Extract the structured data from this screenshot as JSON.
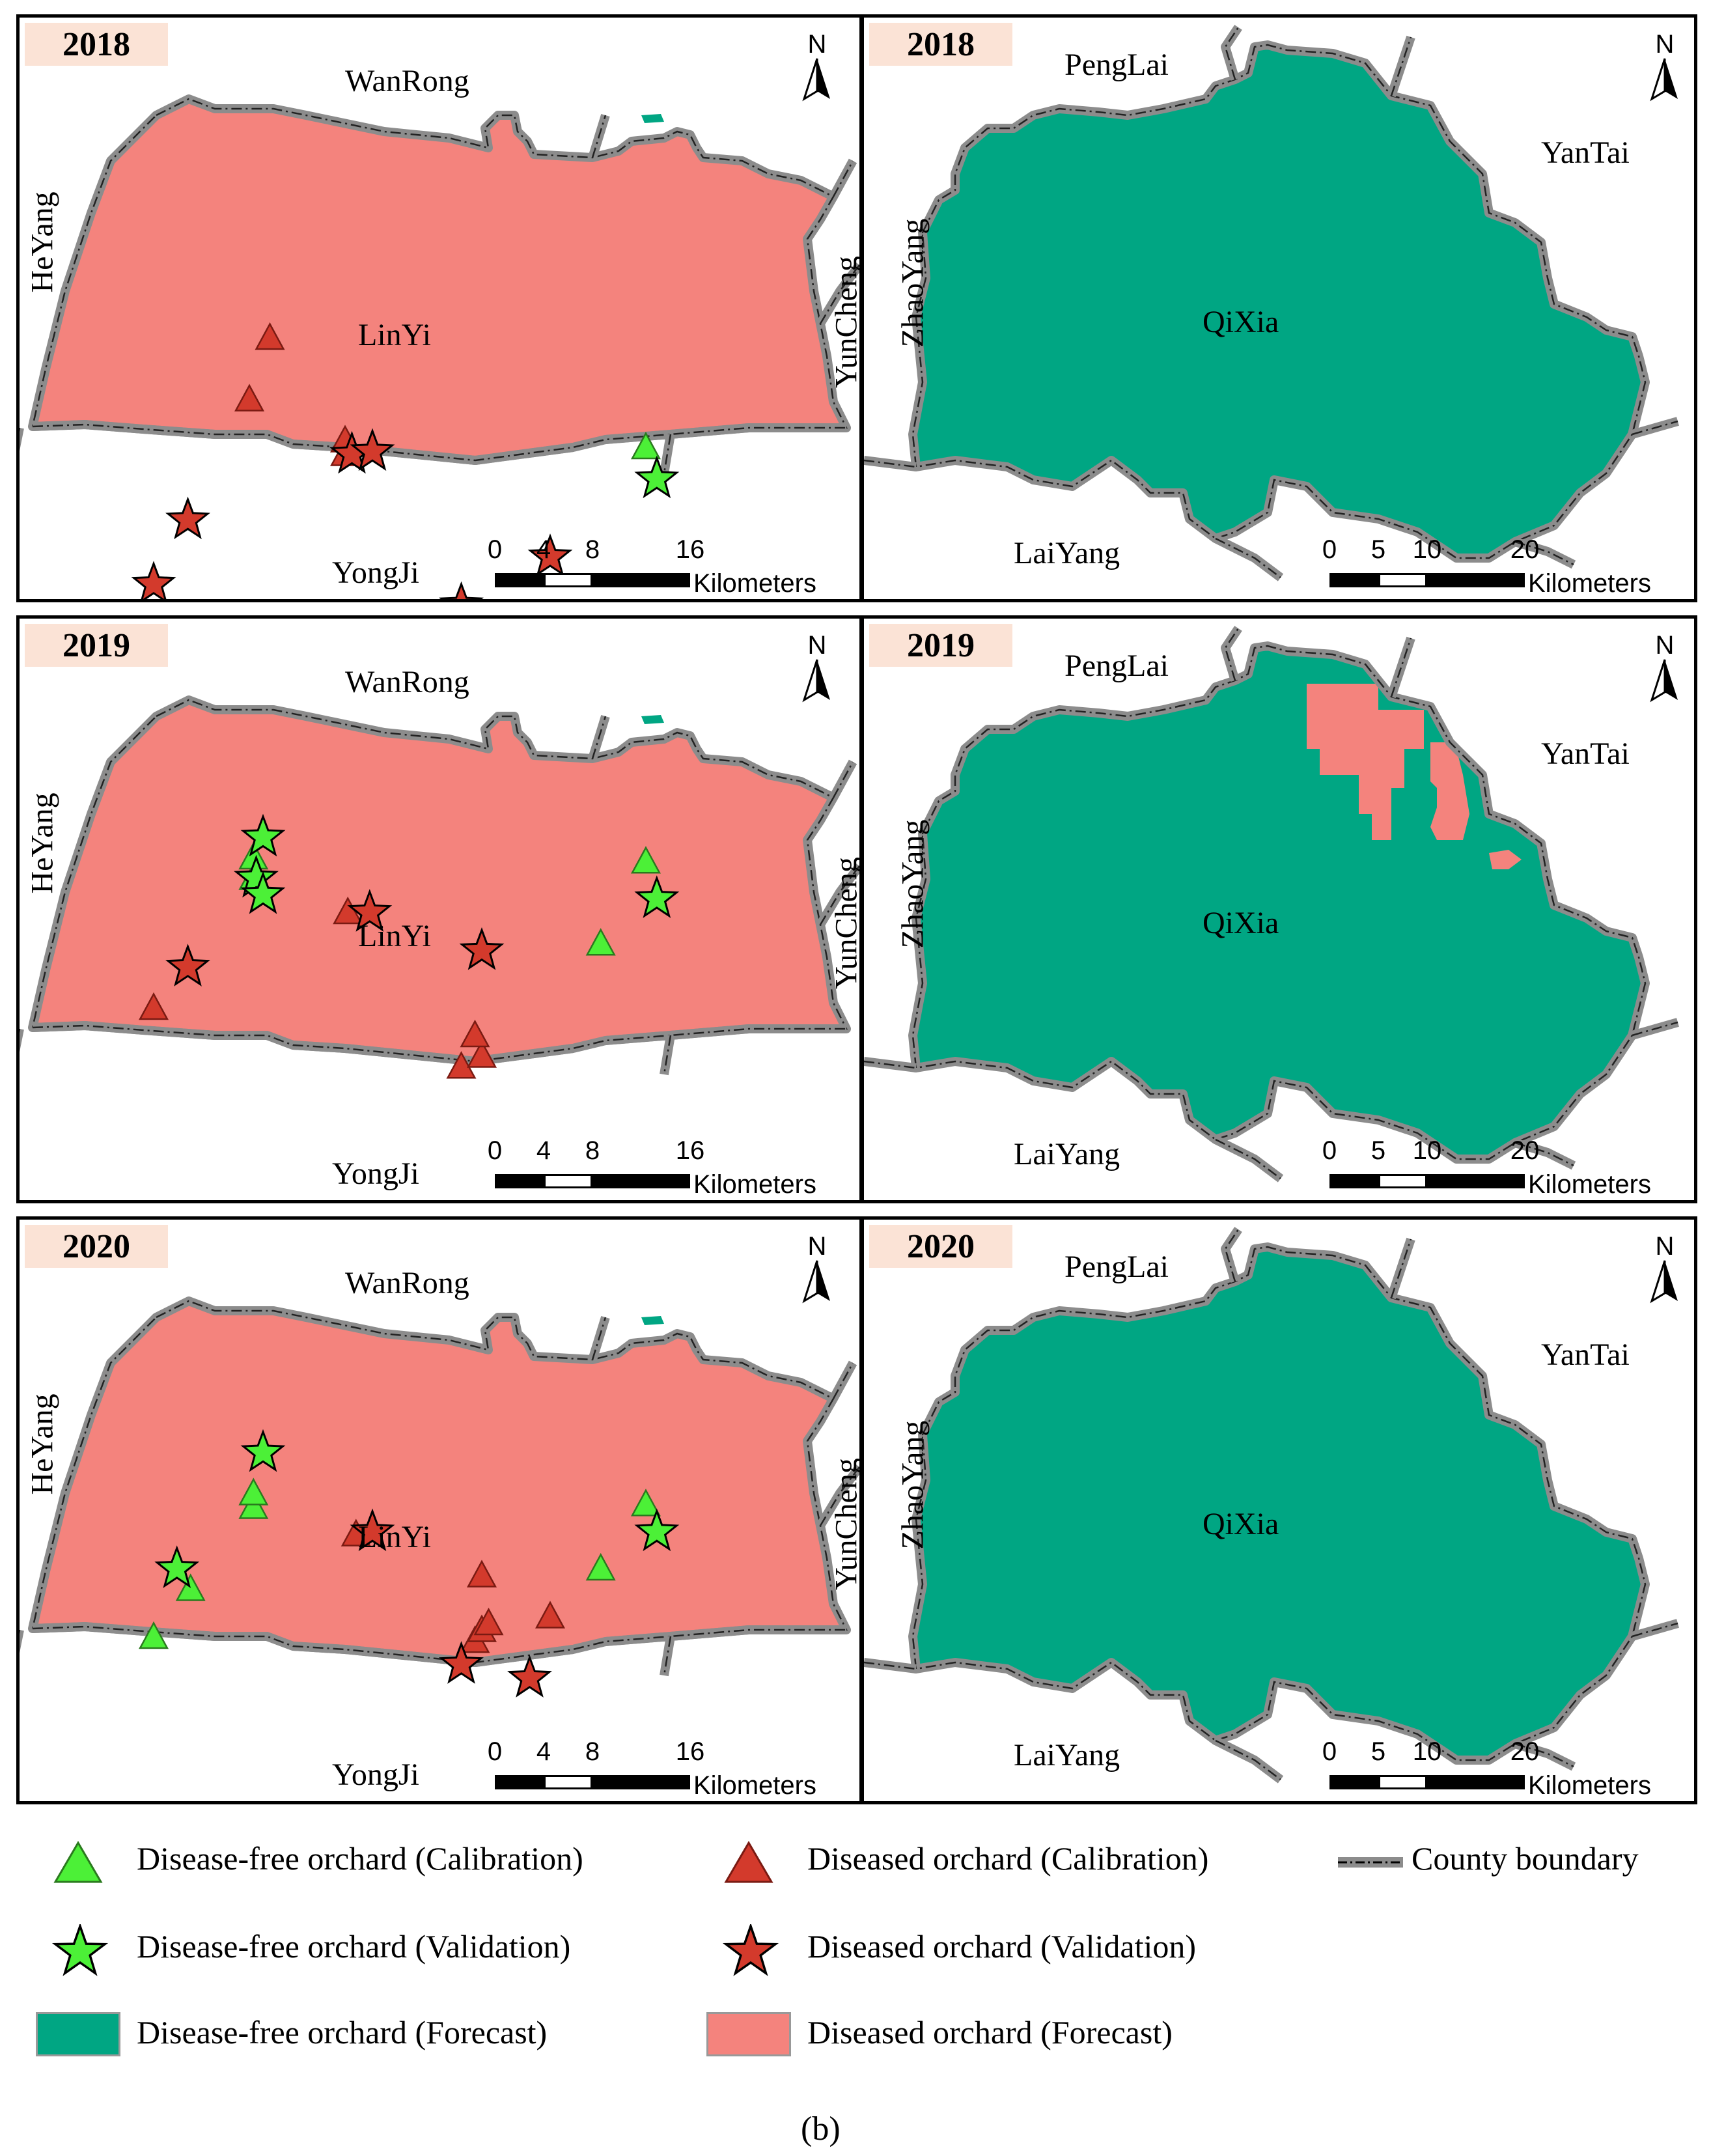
{
  "colors": {
    "diseased_fill": "#f4837d",
    "free_fill": "#00a683",
    "boundary": "#8c8c8c",
    "green_marker": "#4cf037",
    "red_marker": "#d33a2c",
    "year_bg": "#fbe3d6"
  },
  "panels": [
    {
      "year": "2018",
      "region": "LinYi",
      "neighbors": {
        "north": "WanRong",
        "west": "HeYang",
        "east": "YunCheng",
        "south": "YongJi"
      },
      "scale": {
        "ticks": [
          "0",
          "4",
          "8",
          "16"
        ],
        "unit": "Kilometers"
      }
    },
    {
      "year": "2018",
      "region": "QiXia",
      "neighbors": {
        "north": "PengLai",
        "west": "ZhaoYang",
        "east": "YanTai",
        "south": "LaiYang"
      },
      "scale": {
        "ticks": [
          "0",
          "5",
          "10",
          "20"
        ],
        "unit": "Kilometers"
      }
    },
    {
      "year": "2019",
      "region": "LinYi",
      "neighbors": {
        "north": "WanRong",
        "west": "HeYang",
        "east": "YunCheng",
        "south": "YongJi"
      },
      "scale": {
        "ticks": [
          "0",
          "4",
          "8",
          "16"
        ],
        "unit": "Kilometers"
      }
    },
    {
      "year": "2019",
      "region": "QiXia",
      "neighbors": {
        "north": "PengLai",
        "west": "ZhaoYang",
        "east": "YanTai",
        "south": "LaiYang"
      },
      "scale": {
        "ticks": [
          "0",
          "5",
          "10",
          "20"
        ],
        "unit": "Kilometers"
      }
    },
    {
      "year": "2020",
      "region": "LinYi",
      "neighbors": {
        "north": "WanRong",
        "west": "HeYang",
        "east": "YunCheng",
        "south": "YongJi"
      },
      "scale": {
        "ticks": [
          "0",
          "4",
          "8",
          "16"
        ],
        "unit": "Kilometers"
      }
    },
    {
      "year": "2020",
      "region": "QiXia",
      "neighbors": {
        "north": "PengLai",
        "west": "ZhaoYang",
        "east": "YanTai",
        "south": "LaiYang"
      },
      "scale": {
        "ticks": [
          "0",
          "5",
          "10",
          "20"
        ],
        "unit": "Kilometers"
      }
    }
  ],
  "north_label": "N",
  "legend": {
    "free_calibration": "Disease-free orchard (Calibration)",
    "diseased_calibration": "Diseased orchard (Calibration)",
    "county_boundary": "County boundary",
    "free_validation": "Disease-free orchard (Validation)",
    "diseased_validation": "Diseased orchard (Validation)",
    "free_forecast": "Disease-free orchard (Forecast)",
    "diseased_forecast": "Diseased orchard (Forecast)"
  },
  "caption": "(b)"
}
